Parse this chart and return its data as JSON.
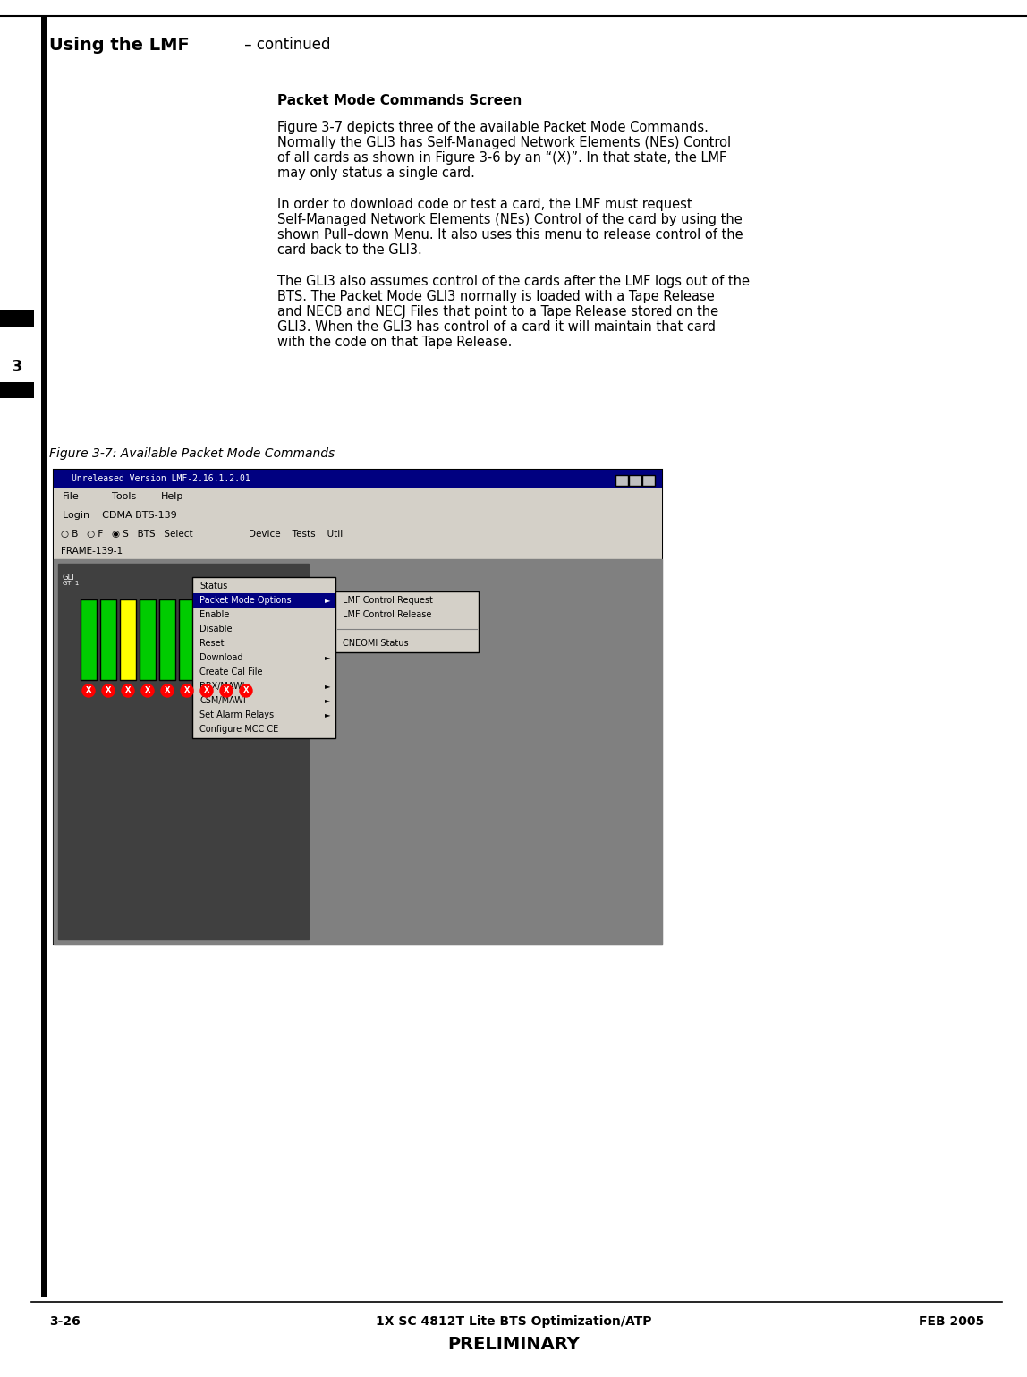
{
  "title_bold": "Using the LMF",
  "title_regular": " – continued",
  "section_title": "Packet Mode Commands Screen",
  "body_text_1": "Figure 3-7 depicts three of the available Packet Mode Commands.\nNormally the GLI3 has Self-Managed Network Elements (NEs) Control\nof all cards as shown in Figure 3-6 by an “(X)”. In that state, the LMF\nmay only status a single card.",
  "body_text_2": "In order to download code or test a card, the LMF must request\nSelf-Managed Network Elements (NEs) Control of the card by using the\nshown Pull–down Menu. It also uses this menu to release control of the\ncard back to the GLI3.",
  "body_text_3": "The GLI3 also assumes control of the cards after the LMF logs out of the\nBTS. The Packet Mode GLI3 normally is loaded with a Tape Release\nand NECB and NECJ Files that point to a Tape Release stored on the\nGLI3. When the GLI3 has control of a card it will maintain that card\nwith the code on that Tape Release.",
  "figure_caption": "Figure 3-7: Available Packet Mode Commands",
  "footer_left": "3-26",
  "footer_center": "1X SC 4812T Lite BTS Optimization/ATP",
  "footer_right": "FEB 2005",
  "footer_prelim": "PRELIMINARY",
  "chapter_num": "3",
  "bg_color": "#ffffff",
  "header_line_color": "#000000",
  "footer_line_color": "#000000",
  "left_bar_color": "#000000",
  "chapter_tab_color": "#000000"
}
